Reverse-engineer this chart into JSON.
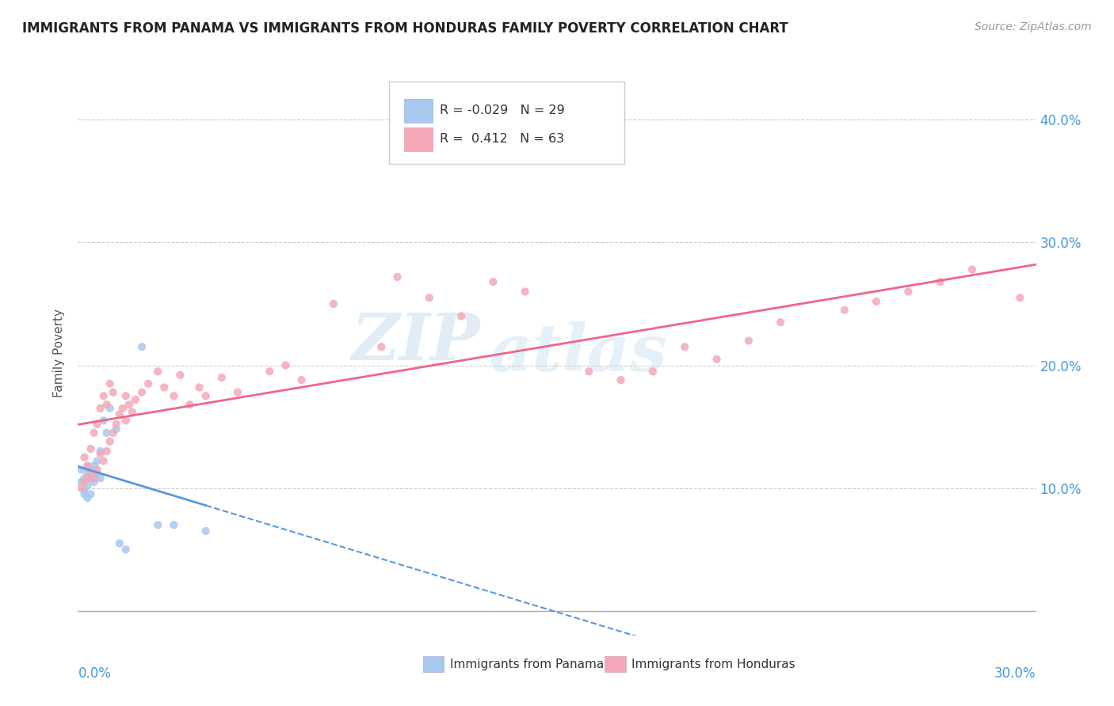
{
  "title": "IMMIGRANTS FROM PANAMA VS IMMIGRANTS FROM HONDURAS FAMILY POVERTY CORRELATION CHART",
  "source": "Source: ZipAtlas.com",
  "ylabel": "Family Poverty",
  "ytick_values": [
    0.1,
    0.2,
    0.3,
    0.4
  ],
  "ytick_labels": [
    "10.0%",
    "20.0%",
    "30.0%",
    "40.0%"
  ],
  "xlim": [
    0.0,
    0.3
  ],
  "ylim": [
    -0.02,
    0.44
  ],
  "legend1_r": "-0.029",
  "legend1_n": "29",
  "legend2_r": "0.412",
  "legend2_n": "63",
  "color_panama": "#a8c8f0",
  "color_honduras": "#f4a8b8",
  "color_panama_line": "#5599dd",
  "color_honduras_line": "#ee6688",
  "watermark_text": "ZIP",
  "watermark_text2": "atlas",
  "panama_x": [
    0.001,
    0.001,
    0.002,
    0.002,
    0.002,
    0.003,
    0.003,
    0.003,
    0.003,
    0.004,
    0.004,
    0.004,
    0.005,
    0.005,
    0.005,
    0.006,
    0.006,
    0.007,
    0.007,
    0.008,
    0.009,
    0.01,
    0.012,
    0.013,
    0.015,
    0.02,
    0.025,
    0.03,
    0.04
  ],
  "panama_y": [
    0.115,
    0.105,
    0.098,
    0.108,
    0.095,
    0.112,
    0.102,
    0.118,
    0.092,
    0.108,
    0.115,
    0.095,
    0.11,
    0.118,
    0.105,
    0.122,
    0.112,
    0.13,
    0.108,
    0.155,
    0.145,
    0.165,
    0.148,
    0.055,
    0.05,
    0.215,
    0.07,
    0.07,
    0.065
  ],
  "honduras_x": [
    0.001,
    0.002,
    0.002,
    0.003,
    0.003,
    0.004,
    0.004,
    0.005,
    0.005,
    0.006,
    0.006,
    0.007,
    0.007,
    0.008,
    0.008,
    0.009,
    0.009,
    0.01,
    0.01,
    0.011,
    0.011,
    0.012,
    0.013,
    0.014,
    0.015,
    0.015,
    0.016,
    0.017,
    0.018,
    0.02,
    0.022,
    0.025,
    0.027,
    0.03,
    0.032,
    0.035,
    0.038,
    0.04,
    0.045,
    0.05,
    0.06,
    0.065,
    0.07,
    0.08,
    0.095,
    0.1,
    0.11,
    0.12,
    0.13,
    0.14,
    0.16,
    0.17,
    0.18,
    0.19,
    0.2,
    0.21,
    0.22,
    0.24,
    0.25,
    0.26,
    0.27,
    0.28,
    0.295
  ],
  "honduras_y": [
    0.1,
    0.105,
    0.125,
    0.108,
    0.118,
    0.112,
    0.132,
    0.108,
    0.145,
    0.115,
    0.152,
    0.128,
    0.165,
    0.122,
    0.175,
    0.13,
    0.168,
    0.138,
    0.185,
    0.145,
    0.178,
    0.152,
    0.16,
    0.165,
    0.155,
    0.175,
    0.168,
    0.162,
    0.172,
    0.178,
    0.185,
    0.195,
    0.182,
    0.175,
    0.192,
    0.168,
    0.182,
    0.175,
    0.19,
    0.178,
    0.195,
    0.2,
    0.188,
    0.25,
    0.215,
    0.272,
    0.255,
    0.24,
    0.268,
    0.26,
    0.195,
    0.188,
    0.195,
    0.215,
    0.205,
    0.22,
    0.235,
    0.245,
    0.252,
    0.26,
    0.268,
    0.278,
    0.255
  ]
}
